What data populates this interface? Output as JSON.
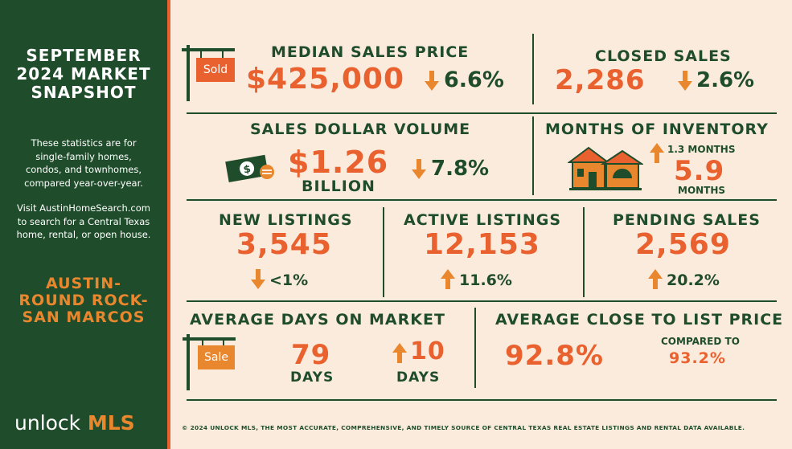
{
  "sidebar": {
    "title_lines": [
      "SEPTEMBER",
      "2024 MARKET",
      "SNAPSHOT"
    ],
    "description_lines": [
      "These statistics are for",
      "single-family homes,",
      "condos, and townhomes,",
      "compared year-over-year."
    ],
    "visit_lines": [
      "Visit AustinHomeSearch.com",
      "to search for a Central Texas",
      "home, rental, or open house."
    ],
    "region_lines": [
      "AUSTIN-",
      "ROUND ROCK-",
      "SAN MARCOS"
    ],
    "logo_word1": "unlock",
    "logo_word2": "MLS"
  },
  "median_sales_price": {
    "title": "MEDIAN SALES PRICE",
    "sign_label": "Sold",
    "value": "$425,000",
    "change": "6.6%",
    "direction": "down"
  },
  "closed_sales": {
    "title": "CLOSED SALES",
    "value": "2,286",
    "change": "2.6%",
    "direction": "down"
  },
  "sales_dollar_volume": {
    "title": "SALES DOLLAR VOLUME",
    "value": "$1.26",
    "unit": "BILLION",
    "change": "7.8%",
    "direction": "down"
  },
  "months_of_inventory": {
    "title": "MONTHS OF INVENTORY",
    "change": "1.3 MONTHS",
    "direction": "up",
    "value": "5.9",
    "unit": "MONTHS"
  },
  "new_listings": {
    "title": "NEW LISTINGS",
    "value": "3,545",
    "change": "<1%",
    "direction": "down"
  },
  "active_listings": {
    "title": "ACTIVE LISTINGS",
    "value": "12,153",
    "change": "11.6%",
    "direction": "up"
  },
  "pending_sales": {
    "title": "PENDING SALES",
    "value": "2,569",
    "change": "20.2%",
    "direction": "up"
  },
  "average_days_on_market": {
    "title": "AVERAGE DAYS ON MARKET",
    "sign_label": "Sale",
    "value": "79",
    "unit": "DAYS",
    "change": "10",
    "change_unit": "DAYS",
    "direction": "up"
  },
  "average_close_to_list": {
    "title": "AVERAGE CLOSE TO LIST PRICE",
    "value": "92.8%",
    "compared_label": "COMPARED TO",
    "compared_value": "93.2%"
  },
  "footer": "© 2024 UNLOCK MLS, THE MOST ACCURATE, COMPREHENSIVE, AND TIMELY SOURCE  OF CENTRAL TEXAS REAL ESTATE LISTINGS AND RENTAL DATA AVAILABLE.",
  "colors": {
    "green": "#1f4d2b",
    "orange": "#e9612e",
    "arrow": "#e9872f",
    "background": "#fbebdd"
  }
}
